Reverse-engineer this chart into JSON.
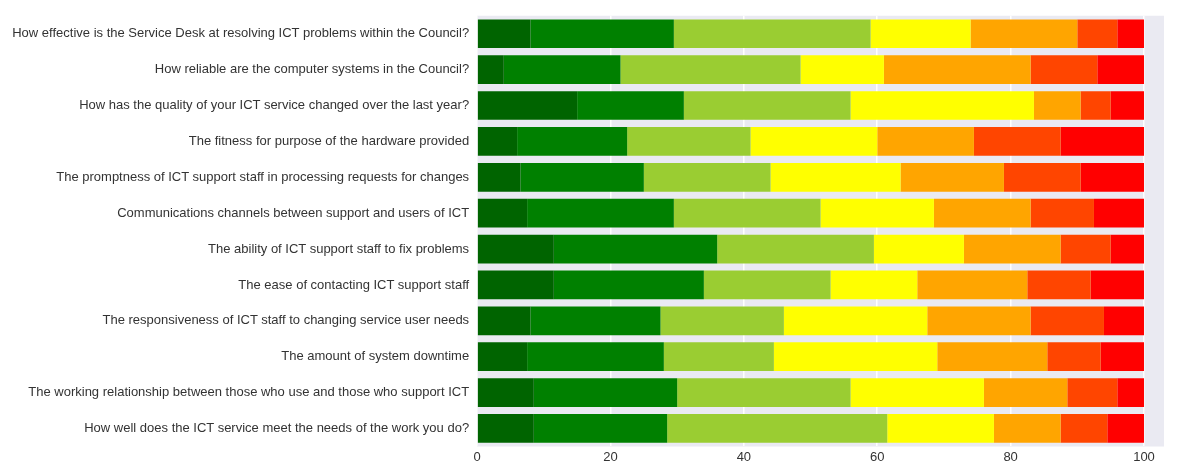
{
  "chart_data": {
    "type": "bar",
    "orientation": "horizontal",
    "stacked": true,
    "grid": "x",
    "legend": false,
    "categories": [
      "How effective is the Service Desk at resolving ICT problems within the Council?",
      "How reliable are the computer systems in the Council?",
      "How has the quality of your ICT service changed over the last year?",
      "The fitness for purpose of the hardware provided",
      "The promptness of ICT support staff in processing requests for changes",
      "Communications channels between support and users of ICT",
      "The ability of ICT support staff to fix problems",
      "The ease of contacting ICT support staff",
      "The responsiveness of ICT staff to changing service user needs",
      "The amount of system downtime",
      "The working relationship between those who use and those who support ICT",
      "How well does the ICT service meet the needs of the work you do?"
    ],
    "xlim": [
      0,
      103
    ],
    "xticks": [
      0,
      20,
      40,
      60,
      80,
      100
    ],
    "series": [
      {
        "color": "#006400",
        "values": [
          8,
          4,
          15,
          6,
          6.5,
          7.5,
          11.5,
          11.5,
          8,
          7.5,
          8.5,
          8.5
        ]
      },
      {
        "color": "#008000",
        "values": [
          21.5,
          17.5,
          16,
          16.5,
          18.5,
          22,
          24.5,
          22.5,
          19.5,
          20.5,
          21.5,
          20
        ]
      },
      {
        "color": "#9acd32",
        "values": [
          29.5,
          27,
          25,
          18.5,
          19,
          22,
          23.5,
          19,
          18.5,
          16.5,
          26,
          33
        ]
      },
      {
        "color": "#ffff00",
        "values": [
          15,
          12.5,
          27.5,
          19,
          19.5,
          17,
          13.5,
          13,
          21.5,
          24.5,
          20,
          16
        ]
      },
      {
        "color": "#ffa500",
        "values": [
          16,
          22,
          7,
          14.5,
          15.5,
          14.5,
          14.5,
          16.5,
          15.5,
          16.5,
          12.5,
          10
        ]
      },
      {
        "color": "#ff4500",
        "values": [
          6,
          10,
          4.5,
          13,
          11.5,
          9.5,
          7.5,
          9.5,
          11,
          8,
          7.5,
          7
        ]
      },
      {
        "color": "#ff0000",
        "values": [
          4,
          7,
          5,
          12.5,
          9.5,
          7.5,
          5,
          8,
          6,
          6.5,
          4,
          5.5
        ]
      }
    ]
  }
}
